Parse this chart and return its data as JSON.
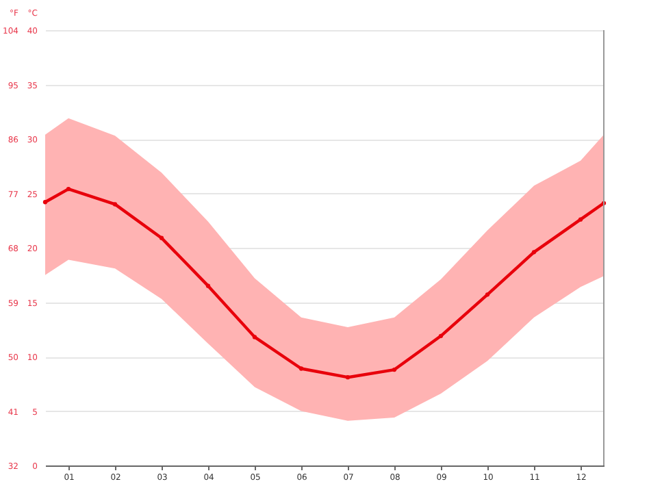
{
  "chart_data": {
    "type": "line",
    "ylabel": "°C",
    "y2label": "°F",
    "x": [
      0.5,
      1,
      2,
      3,
      4,
      5,
      6,
      7,
      8,
      9,
      10,
      11,
      12,
      12.5
    ],
    "series": [
      {
        "color": "#e8000b",
        "values": [
          24.2,
          25.4,
          24.0,
          20.9,
          16.5,
          11.8,
          8.9,
          8.1,
          8.8,
          11.9,
          15.7,
          19.6,
          22.6,
          24.1
        ],
        "lower": [
          17.5,
          18.9,
          18.1,
          15.3,
          11.2,
          7.2,
          5.0,
          4.1,
          4.4,
          6.6,
          9.6,
          13.6,
          16.4,
          17.4
        ],
        "upper": [
          30.4,
          31.9,
          30.3,
          26.9,
          22.4,
          17.2,
          13.6,
          12.7,
          13.6,
          17.1,
          21.6,
          25.7,
          28.0,
          30.4
        ]
      }
    ],
    "xlim": [
      0.5,
      12.5
    ],
    "xticks": [
      {
        "value": 1,
        "label": "01"
      },
      {
        "value": 2,
        "label": "02"
      },
      {
        "value": 3,
        "label": "03"
      },
      {
        "value": 4,
        "label": "04"
      },
      {
        "value": 5,
        "label": "05"
      },
      {
        "value": 6,
        "label": "06"
      },
      {
        "value": 7,
        "label": "07"
      },
      {
        "value": 8,
        "label": "08"
      },
      {
        "value": 9,
        "label": "09"
      },
      {
        "value": 10,
        "label": "10"
      },
      {
        "value": 11,
        "label": "11"
      },
      {
        "value": 12,
        "label": "12"
      }
    ],
    "ylim": [
      0,
      40
    ],
    "yticks": [
      0,
      5,
      10,
      15,
      20,
      25,
      30,
      35,
      40
    ],
    "y2lim": [
      32,
      104
    ],
    "y2ticks": [
      32,
      41,
      50,
      59,
      68,
      77,
      86,
      95,
      104
    ],
    "grid": "y",
    "marker": "circle",
    "line_style": "solid"
  }
}
